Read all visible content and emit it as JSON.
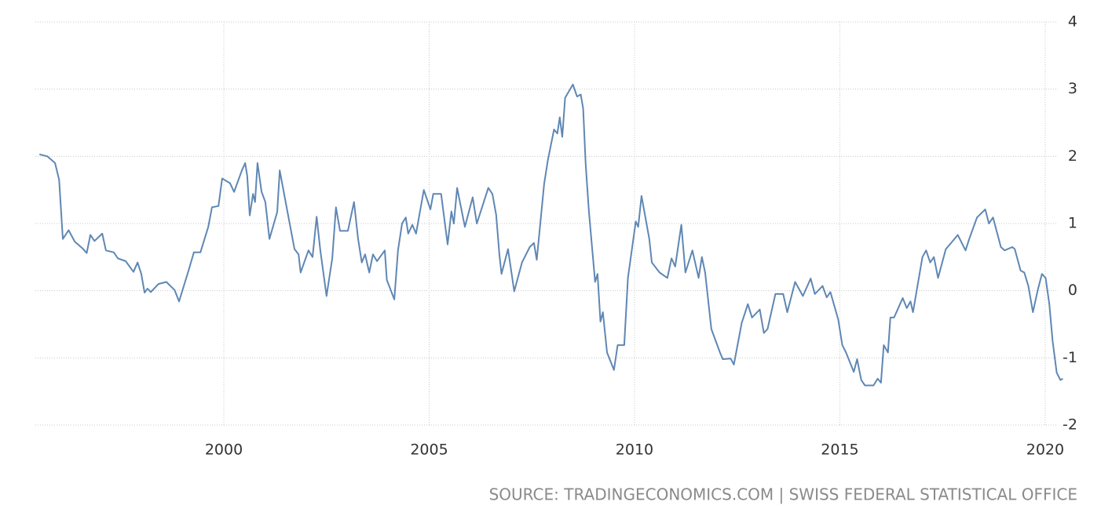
{
  "chart_data": {
    "type": "line",
    "source": "SOURCE: TRADINGECONOMICS.COM | SWISS FEDERAL STATISTICAL OFFICE",
    "xlim": [
      1995.41,
      2020.46
    ],
    "xticks": [
      2000,
      2005,
      2010,
      2015,
      2020
    ],
    "ylim": [
      -2,
      4
    ],
    "yticks": [
      -2,
      -1,
      0,
      1,
      2,
      3,
      4
    ],
    "grid": true,
    "series": [
      {
        "color": "#5f87b4",
        "x": [
          1995.51,
          1995.7,
          1995.89,
          1995.99,
          1996.08,
          1996.22,
          1996.37,
          1996.56,
          1996.66,
          1996.75,
          1996.85,
          1997.04,
          1997.13,
          1997.32,
          1997.42,
          1997.61,
          1997.8,
          1997.9,
          1997.99,
          1998.07,
          1998.14,
          1998.22,
          1998.41,
          1998.6,
          1998.8,
          1998.91,
          1999.14,
          1999.27,
          1999.43,
          1999.62,
          1999.71,
          1999.87,
          1999.96,
          2000.15,
          2000.25,
          2000.44,
          2000.52,
          2000.57,
          2000.63,
          2000.71,
          2000.76,
          2000.82,
          2000.92,
          2001.01,
          2001.11,
          2001.3,
          2001.36,
          2001.53,
          2001.72,
          2001.82,
          2001.87,
          2002.06,
          2002.16,
          2002.26,
          2002.35,
          2002.5,
          2002.64,
          2002.73,
          2002.83,
          2003.02,
          2003.17,
          2003.27,
          2003.36,
          2003.44,
          2003.54,
          2003.63,
          2003.73,
          2003.92,
          2003.97,
          2004.15,
          2004.24,
          2004.34,
          2004.43,
          2004.49,
          2004.59,
          2004.68,
          2004.87,
          2005.03,
          2005.1,
          2005.29,
          2005.45,
          2005.54,
          2005.6,
          2005.68,
          2005.87,
          2006.06,
          2006.16,
          2006.44,
          2006.54,
          2006.63,
          2006.71,
          2006.76,
          2006.92,
          2007.07,
          2007.26,
          2007.45,
          2007.55,
          2007.62,
          2007.8,
          2007.89,
          2008.04,
          2008.12,
          2008.18,
          2008.24,
          2008.31,
          2008.5,
          2008.6,
          2008.69,
          2008.75,
          2008.81,
          2008.89,
          2009.04,
          2009.1,
          2009.17,
          2009.23,
          2009.33,
          2009.5,
          2009.59,
          2009.75,
          2009.84,
          2010.03,
          2010.09,
          2010.17,
          2010.36,
          2010.42,
          2010.61,
          2010.8,
          2010.9,
          2010.99,
          2011.14,
          2011.24,
          2011.41,
          2011.56,
          2011.64,
          2011.72,
          2011.87,
          2012.08,
          2012.15,
          2012.34,
          2012.42,
          2012.61,
          2012.76,
          2012.86,
          2013.05,
          2013.15,
          2013.24,
          2013.43,
          2013.62,
          2013.72,
          2013.91,
          2014.1,
          2014.29,
          2014.39,
          2014.58,
          2014.68,
          2014.77,
          2014.96,
          2015.06,
          2015.15,
          2015.34,
          2015.42,
          2015.52,
          2015.61,
          2015.82,
          2015.92,
          2016.0,
          2016.07,
          2016.17,
          2016.23,
          2016.32,
          2016.53,
          2016.63,
          2016.72,
          2016.78,
          2017.01,
          2017.1,
          2017.2,
          2017.29,
          2017.39,
          2017.58,
          2017.68,
          2017.87,
          2018.06,
          2018.15,
          2018.34,
          2018.54,
          2018.63,
          2018.73,
          2018.92,
          2019.01,
          2019.2,
          2019.26,
          2019.4,
          2019.49,
          2019.59,
          2019.7,
          2019.82,
          2019.92,
          2020.01,
          2020.1,
          2020.18,
          2020.28,
          2020.37,
          2020.43
        ],
        "values": [
          2.03,
          2.0,
          1.9,
          1.65,
          0.77,
          0.9,
          0.73,
          0.63,
          0.56,
          0.83,
          0.74,
          0.85,
          0.6,
          0.57,
          0.48,
          0.44,
          0.28,
          0.42,
          0.25,
          -0.03,
          0.03,
          -0.02,
          0.1,
          0.13,
          0.01,
          -0.16,
          0.3,
          0.57,
          0.57,
          0.95,
          1.24,
          1.26,
          1.67,
          1.6,
          1.47,
          1.79,
          1.9,
          1.71,
          1.12,
          1.44,
          1.32,
          1.9,
          1.47,
          1.32,
          0.77,
          1.17,
          1.79,
          1.24,
          0.62,
          0.54,
          0.27,
          0.6,
          0.5,
          1.1,
          0.6,
          -0.08,
          0.48,
          1.24,
          0.89,
          0.89,
          1.32,
          0.77,
          0.42,
          0.54,
          0.27,
          0.54,
          0.44,
          0.6,
          0.16,
          -0.13,
          0.6,
          1.0,
          1.09,
          0.85,
          0.98,
          0.85,
          1.5,
          1.21,
          1.44,
          1.44,
          0.69,
          1.18,
          1.0,
          1.53,
          0.95,
          1.39,
          1.0,
          1.53,
          1.44,
          1.13,
          0.54,
          0.25,
          0.62,
          -0.01,
          0.42,
          0.65,
          0.71,
          0.46,
          1.59,
          1.94,
          2.4,
          2.34,
          2.58,
          2.29,
          2.87,
          3.07,
          2.89,
          2.92,
          2.71,
          1.88,
          1.18,
          0.13,
          0.25,
          -0.46,
          -0.32,
          -0.92,
          -1.18,
          -0.81,
          -0.81,
          0.19,
          1.03,
          0.95,
          1.41,
          0.77,
          0.42,
          0.27,
          0.19,
          0.48,
          0.36,
          0.98,
          0.27,
          0.6,
          0.19,
          0.5,
          0.27,
          -0.57,
          -0.92,
          -1.02,
          -1.01,
          -1.1,
          -0.48,
          -0.2,
          -0.4,
          -0.28,
          -0.63,
          -0.57,
          -0.05,
          -0.05,
          -0.32,
          0.13,
          -0.08,
          0.18,
          -0.05,
          0.07,
          -0.1,
          -0.02,
          -0.43,
          -0.81,
          -0.92,
          -1.21,
          -1.02,
          -1.33,
          -1.41,
          -1.41,
          -1.31,
          -1.37,
          -0.81,
          -0.92,
          -0.4,
          -0.4,
          -0.11,
          -0.26,
          -0.16,
          -0.32,
          0.5,
          0.6,
          0.42,
          0.5,
          0.19,
          0.62,
          0.69,
          0.83,
          0.6,
          0.77,
          1.09,
          1.21,
          1.0,
          1.09,
          0.65,
          0.6,
          0.65,
          0.62,
          0.3,
          0.27,
          0.07,
          -0.32,
          0.01,
          0.25,
          0.19,
          -0.2,
          -0.75,
          -1.22,
          -1.33,
          -1.31
        ]
      }
    ]
  }
}
